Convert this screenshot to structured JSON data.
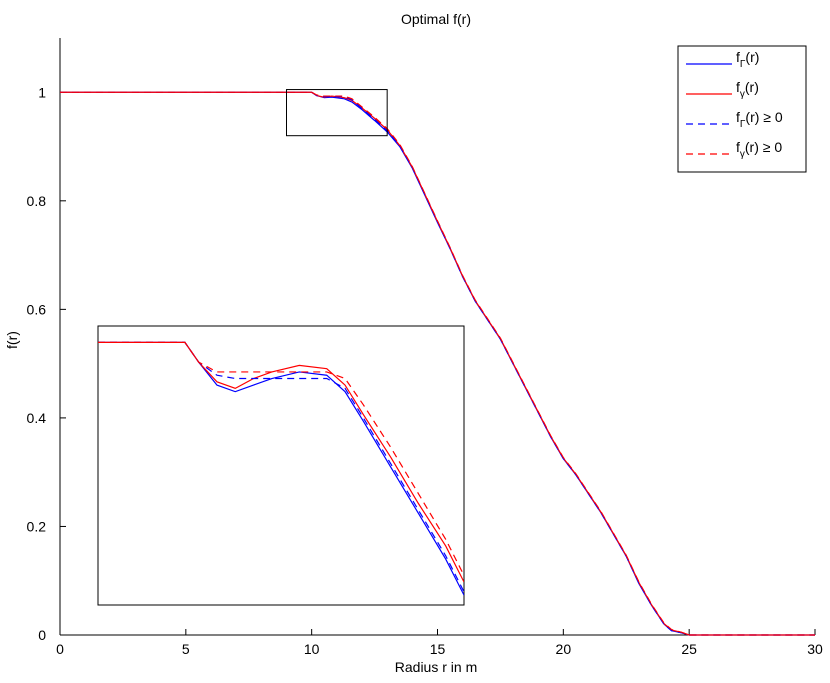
{
  "chart_data": {
    "type": "line",
    "title": "Optimal f(r)",
    "xlabel": "Radius r in m",
    "ylabel": "f(r)",
    "xlim": [
      0,
      30
    ],
    "ylim": [
      0,
      1.1
    ],
    "xticks": [
      0,
      5,
      10,
      15,
      20,
      25,
      30
    ],
    "xtick_labels": [
      "0",
      "5",
      "10",
      "15",
      "20",
      "25",
      "30"
    ],
    "yticks": [
      0,
      0.2,
      0.4,
      0.6,
      0.8,
      1
    ],
    "ytick_labels": [
      "0",
      "0.2",
      "0.4",
      "0.6",
      "0.8",
      "1"
    ],
    "grid": false,
    "legend_position": "top-right",
    "series": [
      {
        "name_main": "f",
        "name_sub": "Γ",
        "name_rest": "(r)",
        "color": "#0000ff",
        "style": "solid",
        "x": [
          0,
          10,
          10.2,
          10.5,
          10.8,
          11.3,
          11.6,
          12,
          12.5,
          13,
          13.5,
          14,
          14.5,
          15,
          15.5,
          16,
          16.5,
          17,
          17.5,
          18,
          18.5,
          19,
          19.5,
          20,
          20.5,
          21,
          21.5,
          22,
          22.5,
          23,
          23.5,
          24,
          24.3,
          24.7,
          25,
          30
        ],
        "y": [
          1,
          1,
          0.994,
          0.99,
          0.991,
          0.988,
          0.982,
          0.968,
          0.948,
          0.927,
          0.9,
          0.86,
          0.81,
          0.76,
          0.712,
          0.66,
          0.615,
          0.58,
          0.545,
          0.5,
          0.455,
          0.41,
          0.365,
          0.325,
          0.295,
          0.26,
          0.225,
          0.185,
          0.145,
          0.095,
          0.055,
          0.02,
          0.008,
          0.004,
          0,
          0
        ]
      },
      {
        "name_main": "f",
        "name_sub": "γ",
        "name_rest": "(r)",
        "color": "#ff0000",
        "style": "solid",
        "x": [
          0,
          10,
          10.2,
          10.5,
          10.8,
          11.3,
          11.6,
          12,
          12.5,
          13,
          13.5,
          14,
          14.5,
          15,
          15.5,
          16,
          16.5,
          17,
          17.5,
          18,
          18.5,
          19,
          19.5,
          20,
          20.5,
          21,
          21.5,
          22,
          22.5,
          23,
          23.5,
          24,
          24.3,
          24.7,
          25,
          30
        ],
        "y": [
          1,
          1,
          0.994,
          0.991,
          0.993,
          0.99,
          0.985,
          0.971,
          0.952,
          0.931,
          0.902,
          0.862,
          0.812,
          0.762,
          0.713,
          0.661,
          0.616,
          0.581,
          0.546,
          0.501,
          0.456,
          0.411,
          0.366,
          0.326,
          0.296,
          0.261,
          0.226,
          0.186,
          0.146,
          0.097,
          0.056,
          0.021,
          0.009,
          0.005,
          0,
          0
        ]
      },
      {
        "name_main": "f",
        "name_sub": "Γ",
        "name_rest": "(r) ≥ 0",
        "color": "#0000ff",
        "style": "dashed",
        "x": [
          0,
          10,
          10.2,
          10.5,
          10.8,
          11.3,
          11.6,
          12,
          12.5,
          13,
          13.5,
          14,
          14.5,
          15,
          15.5,
          16,
          16.5,
          17,
          17.5,
          18,
          18.5,
          19,
          19.5,
          20,
          20.5,
          21,
          21.5,
          22,
          22.5,
          23,
          23.5,
          24,
          24.3,
          24.7,
          25,
          30
        ],
        "y": [
          1,
          1,
          0.994,
          0.992,
          0.992,
          0.992,
          0.986,
          0.97,
          0.95,
          0.929,
          0.901,
          0.861,
          0.811,
          0.761,
          0.712,
          0.66,
          0.615,
          0.58,
          0.545,
          0.5,
          0.455,
          0.41,
          0.365,
          0.325,
          0.295,
          0.26,
          0.225,
          0.185,
          0.145,
          0.096,
          0.055,
          0.02,
          0.008,
          0.004,
          0,
          0
        ]
      },
      {
        "name_main": "f",
        "name_sub": "γ",
        "name_rest": "(r) ≥ 0",
        "color": "#ff0000",
        "style": "dashed",
        "x": [
          0,
          10,
          10.2,
          10.5,
          10.8,
          11.3,
          11.6,
          12,
          12.5,
          13,
          13.5,
          14,
          14.5,
          15,
          15.5,
          16,
          16.5,
          17,
          17.5,
          18,
          18.5,
          19,
          19.5,
          20,
          20.5,
          21,
          21.5,
          22,
          22.5,
          23,
          23.5,
          24,
          24.3,
          24.7,
          25,
          30
        ],
        "y": [
          1,
          1,
          0.995,
          0.993,
          0.993,
          0.993,
          0.988,
          0.973,
          0.954,
          0.933,
          0.904,
          0.863,
          0.813,
          0.763,
          0.714,
          0.662,
          0.617,
          0.582,
          0.547,
          0.502,
          0.457,
          0.412,
          0.367,
          0.327,
          0.297,
          0.262,
          0.227,
          0.187,
          0.147,
          0.098,
          0.057,
          0.022,
          0.01,
          0.005,
          0,
          0
        ]
      }
    ],
    "zoom_region": {
      "xlim": [
        9,
        13
      ],
      "ylim": [
        0.92,
        1.005
      ]
    },
    "inset": {
      "xlim": [
        9,
        13
      ],
      "ylim": [
        0.92,
        1.005
      ],
      "series": [
        {
          "color": "#0000ff",
          "style": "solid",
          "x": [
            9,
            9.95,
            10.1,
            10.3,
            10.5,
            10.7,
            10.9,
            11.2,
            11.5,
            11.7,
            11.9,
            12.2,
            12.5,
            12.8,
            13
          ],
          "y": [
            1.0,
            1.0,
            0.994,
            0.987,
            0.985,
            0.987,
            0.989,
            0.991,
            0.99,
            0.985,
            0.976,
            0.962,
            0.948,
            0.934,
            0.923
          ]
        },
        {
          "color": "#ff0000",
          "style": "solid",
          "x": [
            9,
            9.95,
            10.1,
            10.3,
            10.5,
            10.7,
            10.9,
            11.2,
            11.5,
            11.7,
            11.9,
            12.2,
            12.5,
            12.8,
            13
          ],
          "y": [
            1.0,
            1.0,
            0.994,
            0.988,
            0.986,
            0.989,
            0.991,
            0.993,
            0.992,
            0.987,
            0.978,
            0.965,
            0.951,
            0.938,
            0.927
          ]
        },
        {
          "color": "#0000ff",
          "style": "dashed",
          "x": [
            9,
            9.95,
            10.1,
            10.3,
            10.5,
            10.7,
            10.9,
            11.2,
            11.5,
            11.7,
            11.9,
            12.2,
            12.5,
            12.8,
            13
          ],
          "y": [
            1.0,
            1.0,
            0.994,
            0.99,
            0.989,
            0.989,
            0.989,
            0.989,
            0.989,
            0.986,
            0.977,
            0.963,
            0.949,
            0.935,
            0.924
          ]
        },
        {
          "color": "#ff0000",
          "style": "dashed",
          "x": [
            9,
            9.95,
            10.1,
            10.3,
            10.5,
            10.7,
            10.9,
            11.2,
            11.5,
            11.7,
            11.9,
            12.2,
            12.5,
            12.8,
            13
          ],
          "y": [
            1.0,
            1.0,
            0.994,
            0.991,
            0.991,
            0.991,
            0.991,
            0.991,
            0.991,
            0.989,
            0.981,
            0.968,
            0.954,
            0.94,
            0.929
          ]
        }
      ]
    }
  }
}
